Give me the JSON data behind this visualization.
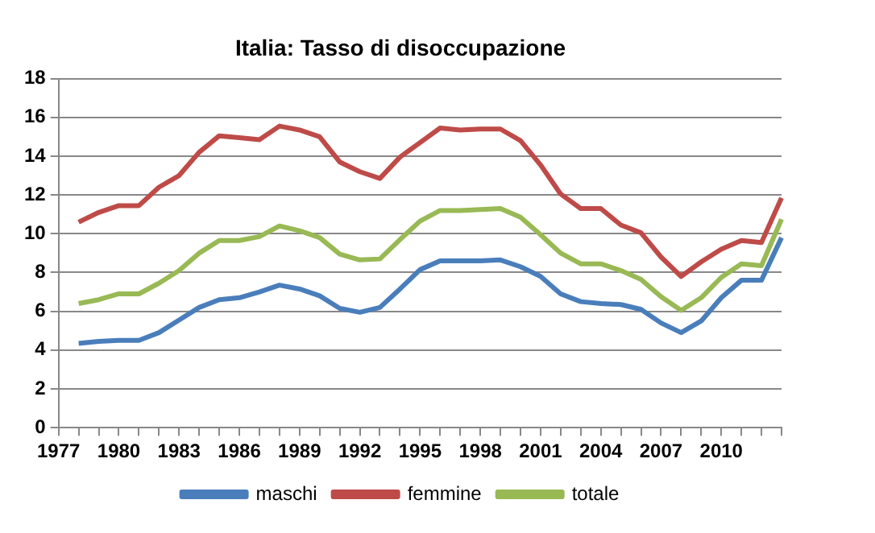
{
  "chart_data": {
    "type": "line",
    "title": "Italia: Tasso di disoccupazione",
    "categories": [
      "1977",
      null,
      null,
      "1980",
      null,
      null,
      "1983",
      null,
      null,
      "1986",
      null,
      null,
      "1989",
      null,
      null,
      "1992",
      null,
      null,
      "1995",
      null,
      null,
      "1998",
      null,
      null,
      "2001",
      null,
      null,
      "2004",
      null,
      null,
      "2007",
      null,
      null,
      "2010",
      null,
      null,
      null
    ],
    "series": [
      {
        "name": "maschi",
        "color": "#4a7ebb",
        "values": [
          null,
          4.35,
          4.45,
          4.5,
          4.5,
          4.9,
          5.55,
          6.2,
          6.6,
          6.7,
          7.0,
          7.35,
          7.15,
          6.8,
          6.15,
          5.95,
          6.2,
          7.15,
          8.15,
          8.6,
          8.6,
          8.6,
          8.65,
          8.3,
          7.8,
          6.9,
          6.5,
          6.4,
          6.35,
          6.1,
          5.4,
          4.9,
          5.5,
          6.7,
          7.6,
          7.6,
          9.8
        ]
      },
      {
        "name": "femmine",
        "color": "#be4b48",
        "values": [
          null,
          10.6,
          11.1,
          11.45,
          11.45,
          12.4,
          13.0,
          14.2,
          15.05,
          14.95,
          14.85,
          15.55,
          15.35,
          15.0,
          13.7,
          13.2,
          12.85,
          13.95,
          14.7,
          15.45,
          15.35,
          15.4,
          15.4,
          14.8,
          13.55,
          12.05,
          11.3,
          11.3,
          10.45,
          10.05,
          8.8,
          7.8,
          8.55,
          9.2,
          9.65,
          9.55,
          11.85
        ]
      },
      {
        "name": "totale",
        "color": "#98b954",
        "values": [
          null,
          6.4,
          6.6,
          6.9,
          6.9,
          7.45,
          8.1,
          9.0,
          9.65,
          9.65,
          9.85,
          10.4,
          10.15,
          9.8,
          8.95,
          8.65,
          8.7,
          9.7,
          10.65,
          11.2,
          11.2,
          11.25,
          11.3,
          10.85,
          9.95,
          9.0,
          8.45,
          8.45,
          8.1,
          7.65,
          6.75,
          6.05,
          6.7,
          7.75,
          8.45,
          8.35,
          10.75
        ]
      }
    ],
    "ylim": [
      0,
      18
    ],
    "yticks": [
      0,
      2,
      4,
      6,
      8,
      10,
      12,
      14,
      16,
      18
    ],
    "grid": "y",
    "legend": "bottom"
  }
}
